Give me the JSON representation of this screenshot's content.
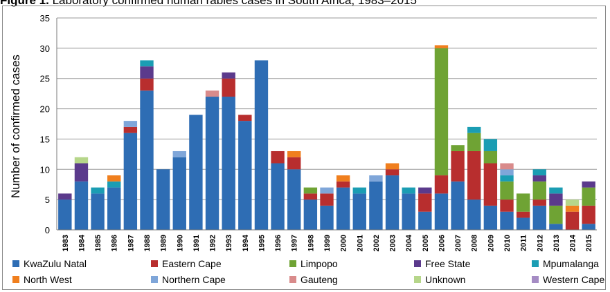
{
  "title_bold": "Figure 1.",
  "title_rest": " Laboratory confirmed human rabies cases in South Africa, 1983–2015",
  "chart_data": {
    "type": "bar",
    "stacked": true,
    "title": "Figure 1. Laboratory confirmed human rabies cases in South Africa, 1983–2015",
    "ylabel": "Number of confirmed cases",
    "xlabel": "",
    "ylim": [
      0,
      35
    ],
    "yticks": [
      0,
      5,
      10,
      15,
      20,
      25,
      30,
      35
    ],
    "grid": true,
    "legend_position": "bottom",
    "categories": [
      "1983",
      "1984",
      "1985",
      "1986",
      "1987",
      "1988",
      "1989",
      "1990",
      "1991",
      "1992",
      "1993",
      "1994",
      "1995",
      "1996",
      "1997",
      "1998",
      "1999",
      "2000",
      "2001",
      "2002",
      "2003",
      "2004",
      "2005",
      "2006",
      "2007",
      "2008",
      "2009",
      "2010",
      "2011",
      "2012",
      "2013",
      "2014",
      "2015"
    ],
    "series": [
      {
        "name": "KwaZulu Natal",
        "color": "#2E6DB4",
        "values": [
          5,
          8,
          6,
          7,
          16,
          23,
          10,
          12,
          19,
          22,
          22,
          18,
          28,
          11,
          10,
          5,
          4,
          7,
          6,
          8,
          9,
          6,
          3,
          6,
          8,
          5,
          4,
          3,
          2,
          4,
          1,
          0,
          1
        ]
      },
      {
        "name": "Eastern Cape",
        "color": "#B82E2E",
        "values": [
          0,
          0,
          0,
          0,
          1,
          2,
          0,
          0,
          0,
          0,
          3,
          1,
          0,
          2,
          2,
          1,
          2,
          1,
          0,
          0,
          1,
          0,
          3,
          3,
          5,
          8,
          7,
          2,
          1,
          1,
          0,
          3,
          3
        ]
      },
      {
        "name": "Limpopo",
        "color": "#6FA334",
        "values": [
          0,
          0,
          0,
          0,
          0,
          0,
          0,
          0,
          0,
          0,
          0,
          0,
          0,
          0,
          0,
          1,
          0,
          0,
          0,
          0,
          0,
          0,
          0,
          21,
          1,
          3,
          2,
          3,
          3,
          3,
          3,
          0,
          3
        ]
      },
      {
        "name": "Free State",
        "color": "#5B3A8C",
        "values": [
          1,
          3,
          0,
          0,
          0,
          2,
          0,
          0,
          0,
          0,
          1,
          0,
          0,
          0,
          0,
          0,
          0,
          0,
          0,
          0,
          0,
          0,
          1,
          0,
          0,
          0,
          0,
          0,
          0,
          1,
          2,
          0,
          1
        ]
      },
      {
        "name": "Mpumalanga",
        "color": "#1B9DB3",
        "values": [
          0,
          0,
          1,
          1,
          0,
          1,
          0,
          0,
          0,
          0,
          0,
          0,
          0,
          0,
          0,
          0,
          0,
          0,
          1,
          0,
          0,
          1,
          0,
          0,
          0,
          1,
          2,
          1,
          0,
          1,
          1,
          0,
          0
        ]
      },
      {
        "name": "North West",
        "color": "#F07F1E",
        "values": [
          0,
          0,
          0,
          1,
          0,
          0,
          0,
          0,
          0,
          0,
          0,
          0,
          0,
          0,
          1,
          0,
          0,
          1,
          0,
          0,
          1,
          0,
          0,
          0.5,
          0,
          0,
          0,
          0,
          0,
          0,
          0,
          1,
          0
        ]
      },
      {
        "name": "Northern Cape",
        "color": "#7FA6D9",
        "values": [
          0,
          0,
          0,
          0,
          1,
          0,
          0,
          1,
          0,
          0,
          0,
          0,
          0,
          0,
          0,
          0,
          1,
          0,
          0,
          1,
          0,
          0,
          0,
          0,
          0,
          0,
          0,
          1,
          0,
          0,
          0,
          0,
          0
        ]
      },
      {
        "name": "Gauteng",
        "color": "#D98B8B",
        "values": [
          0,
          0,
          0,
          0,
          0,
          0,
          0,
          0,
          0,
          1,
          0,
          0,
          0,
          0,
          0,
          0,
          0,
          0,
          0,
          0,
          0,
          0,
          0,
          0,
          0,
          0,
          0,
          1,
          0,
          0,
          0,
          0,
          0
        ]
      },
      {
        "name": "Unknown",
        "color": "#B6D68A",
        "values": [
          0,
          1,
          0,
          0,
          0,
          0,
          0,
          0,
          0,
          0,
          0,
          0,
          0,
          0,
          0,
          0,
          0,
          0,
          0,
          0,
          0,
          0,
          0,
          0,
          0,
          0,
          0,
          0,
          0,
          0,
          0,
          1,
          0
        ]
      },
      {
        "name": "Western Cape",
        "color": "#A58CC4",
        "values": [
          0,
          0,
          0,
          0,
          0,
          0,
          0,
          0,
          0,
          0,
          0,
          0,
          0,
          0,
          0,
          0,
          0,
          0,
          0,
          0,
          0,
          0,
          0,
          0,
          0,
          0,
          0,
          0,
          0,
          0,
          0,
          0,
          0
        ]
      }
    ]
  }
}
